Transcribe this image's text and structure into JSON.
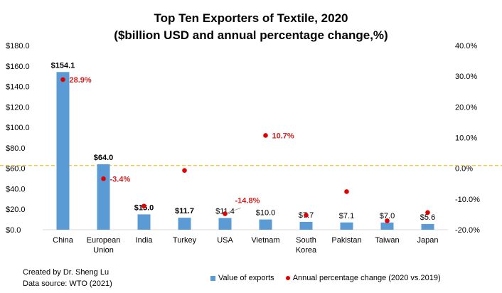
{
  "chart_data": {
    "type": "bar+scatter",
    "title": "Top Ten Exporters of Textile, 2020",
    "subtitle": "($billion USD and annual percentage change,%)",
    "categories": [
      "China",
      "European Union",
      "India",
      "Turkey",
      "USA",
      "Vietnam",
      "South Korea",
      "Pakistan",
      "Taiwan",
      "Japan"
    ],
    "series": [
      {
        "name": "Value of exports",
        "axis": "left",
        "type": "bar",
        "color": "#5b9bd5",
        "values": [
          154.1,
          64.0,
          15.0,
          11.7,
          11.4,
          10.0,
          7.7,
          7.1,
          7.0,
          5.6
        ],
        "labels": [
          "$154.1",
          "$64.0",
          "$15.0",
          "$11.7",
          "$11.4",
          "$10.0",
          "$7.7",
          "$7.1",
          "$7.0",
          "$5.6"
        ],
        "bold": [
          true,
          true,
          true,
          true,
          false,
          false,
          false,
          false,
          false,
          false
        ]
      },
      {
        "name": "Annual percentage change (2020 vs.2019)",
        "axis": "right",
        "type": "scatter",
        "color": "#e00000",
        "values": [
          28.9,
          -3.4,
          -12.3,
          -0.7,
          -14.8,
          10.7,
          -15.3,
          -7.6,
          -17.1,
          -14.4
        ],
        "labels": [
          "28.9%",
          "-3.4%",
          null,
          null,
          "-14.8%",
          "10.7%",
          null,
          null,
          null,
          null
        ]
      }
    ],
    "left_axis": {
      "min": 0,
      "max": 180,
      "step": 20,
      "ticks": [
        "$0.0",
        "$20.0",
        "$40.0",
        "$60.0",
        "$80.0",
        "$100.0",
        "$120.0",
        "$140.0",
        "$160.0",
        "$180.0"
      ]
    },
    "right_axis": {
      "min": -20,
      "max": 40,
      "step": 10,
      "ticks": [
        "-20.0%",
        "-10.0%",
        "0.0%",
        "10.0%",
        "20.0%",
        "30.0%",
        "40.0%"
      ]
    },
    "reference_line": {
      "axis": "right",
      "value": 0,
      "color": "#f2c94c",
      "style": "dashed"
    },
    "legend": [
      "Value of exports",
      "Annual percentage change (2020 vs.2019)"
    ],
    "legend_position": "bottom-right"
  },
  "credits": {
    "created_by": "Created by Dr. Sheng Lu",
    "source": "Data source: WTO (2021)"
  }
}
